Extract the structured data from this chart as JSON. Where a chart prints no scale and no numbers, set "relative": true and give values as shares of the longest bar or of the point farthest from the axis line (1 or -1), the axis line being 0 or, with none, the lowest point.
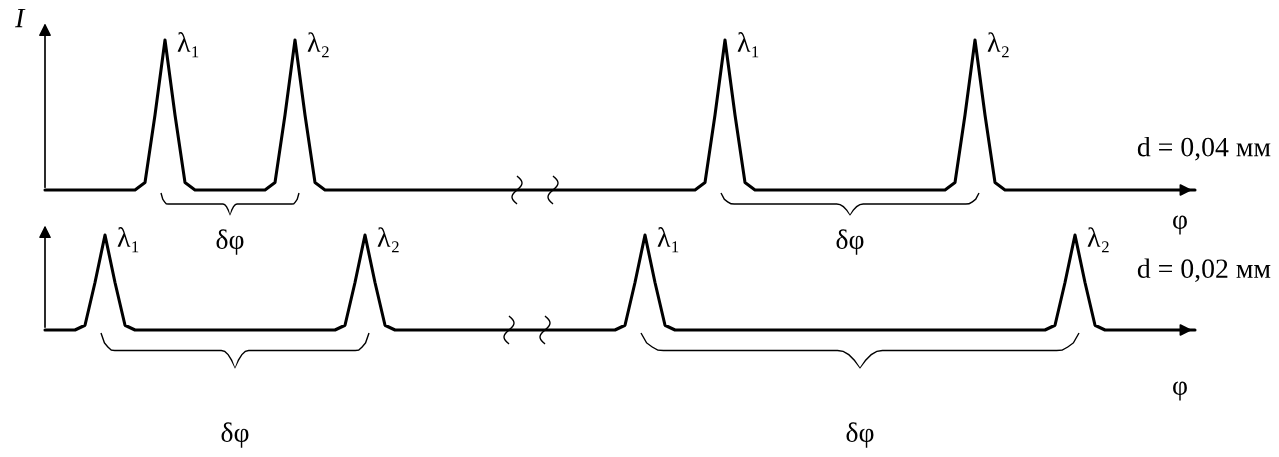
{
  "chart_data": [
    {
      "type": "line",
      "relative": true,
      "line_style": "solid",
      "ylabel": "I",
      "xlabel": "φ",
      "categories": [
        null,
        null,
        null,
        null,
        null,
        null,
        null,
        null,
        null,
        null,
        null,
        null,
        null,
        null,
        null,
        null,
        null,
        null,
        null,
        null,
        null,
        null,
        null,
        null,
        null,
        null,
        null,
        null,
        null,
        null,
        null,
        null,
        null,
        null,
        null,
        null,
        null,
        null,
        null,
        null,
        null,
        null,
        null,
        null,
        null,
        null,
        null,
        null,
        null,
        null,
        null,
        null,
        null,
        null,
        null,
        null,
        null,
        null,
        null,
        null,
        null,
        null,
        null,
        null,
        null,
        null,
        null,
        null,
        null,
        null,
        null,
        null,
        null,
        null,
        null,
        null,
        null,
        null,
        null,
        null,
        null,
        null,
        null,
        null,
        null,
        null,
        null,
        null,
        null,
        null,
        null,
        null,
        null,
        null,
        null,
        null,
        null,
        null,
        null,
        null,
        null,
        null,
        null,
        null,
        null,
        null,
        null,
        null,
        null,
        null,
        null,
        null,
        null,
        null,
        null,
        null
      ],
      "series": [
        {
          "color": "#000000",
          "values": [
            0,
            0,
            0,
            0,
            0,
            0,
            0,
            0,
            0,
            0,
            0.05,
            0.5,
            1,
            0.5,
            0.05,
            0,
            0,
            0,
            0,
            0,
            0,
            0,
            0,
            0.05,
            0.5,
            1,
            0.5,
            0.05,
            0,
            0,
            0,
            0,
            0,
            0,
            0,
            0,
            0,
            0,
            0,
            0,
            0,
            0,
            0,
            0,
            0,
            0,
            0,
            0,
            0,
            0,
            0,
            0,
            0,
            0,
            0,
            0,
            0,
            0,
            0,
            0,
            0,
            0,
            0,
            0,
            0,
            0,
            0.05,
            0.5,
            1,
            0.5,
            0.05,
            0,
            0,
            0,
            0,
            0,
            0,
            0,
            0,
            0,
            0,
            0,
            0,
            0,
            0,
            0,
            0,
            0,
            0,
            0,
            0,
            0.05,
            0.5,
            1,
            0.5,
            0.05,
            0,
            0,
            0,
            0,
            0,
            0,
            0,
            0,
            0,
            0,
            0,
            0,
            0,
            0,
            0,
            0,
            0,
            0,
            0,
            0
          ]
        }
      ],
      "annotations": [
        "λ₁",
        "λ₂",
        "λ₁",
        "λ₂",
        "δφ",
        "δφ",
        "d = 0,04 мм"
      ]
    },
    {
      "type": "line",
      "relative": true,
      "line_style": "solid",
      "xlabel": "φ",
      "categories": [
        null,
        null,
        null,
        null,
        null,
        null,
        null,
        null,
        null,
        null,
        null,
        null,
        null,
        null,
        null,
        null,
        null,
        null,
        null,
        null,
        null,
        null,
        null,
        null,
        null,
        null,
        null,
        null,
        null,
        null,
        null,
        null,
        null,
        null,
        null,
        null,
        null,
        null,
        null,
        null,
        null,
        null,
        null,
        null,
        null,
        null,
        null,
        null,
        null,
        null,
        null,
        null,
        null,
        null,
        null,
        null,
        null,
        null,
        null,
        null,
        null,
        null,
        null,
        null,
        null,
        null,
        null,
        null,
        null,
        null,
        null,
        null,
        null,
        null,
        null,
        null,
        null,
        null,
        null,
        null,
        null,
        null,
        null,
        null,
        null,
        null,
        null,
        null,
        null,
        null,
        null,
        null,
        null,
        null,
        null,
        null,
        null,
        null,
        null,
        null,
        null,
        null,
        null,
        null,
        null,
        null,
        null,
        null,
        null,
        null,
        null,
        null,
        null,
        null,
        null,
        null
      ],
      "series": [
        {
          "color": "#000000",
          "values": [
            0,
            0,
            0,
            0,
            0.05,
            0.5,
            1,
            0.5,
            0.05,
            0,
            0,
            0,
            0,
            0,
            0,
            0,
            0,
            0,
            0,
            0,
            0,
            0,
            0,
            0,
            0,
            0,
            0,
            0,
            0,
            0,
            0.05,
            0.5,
            1,
            0.5,
            0.05,
            0,
            0,
            0,
            0,
            0,
            0,
            0,
            0,
            0,
            0,
            0,
            0,
            0,
            0,
            0,
            0,
            0,
            0,
            0,
            0,
            0,
            0,
            0,
            0.05,
            0.5,
            1,
            0.5,
            0.05,
            0,
            0,
            0,
            0,
            0,
            0,
            0,
            0,
            0,
            0,
            0,
            0,
            0,
            0,
            0,
            0,
            0,
            0,
            0,
            0,
            0,
            0,
            0,
            0,
            0,
            0,
            0,
            0,
            0,
            0,
            0,
            0,
            0,
            0,
            0,
            0,
            0,
            0,
            0.05,
            0.5,
            1,
            0.5,
            0.05,
            0,
            0,
            0,
            0,
            0,
            0,
            0,
            0,
            0,
            0
          ]
        }
      ],
      "annotations": [
        "λ₁",
        "λ₂",
        "λ₁",
        "λ₂",
        "δφ",
        "δφ",
        "d = 0,02 мм"
      ]
    }
  ]
}
